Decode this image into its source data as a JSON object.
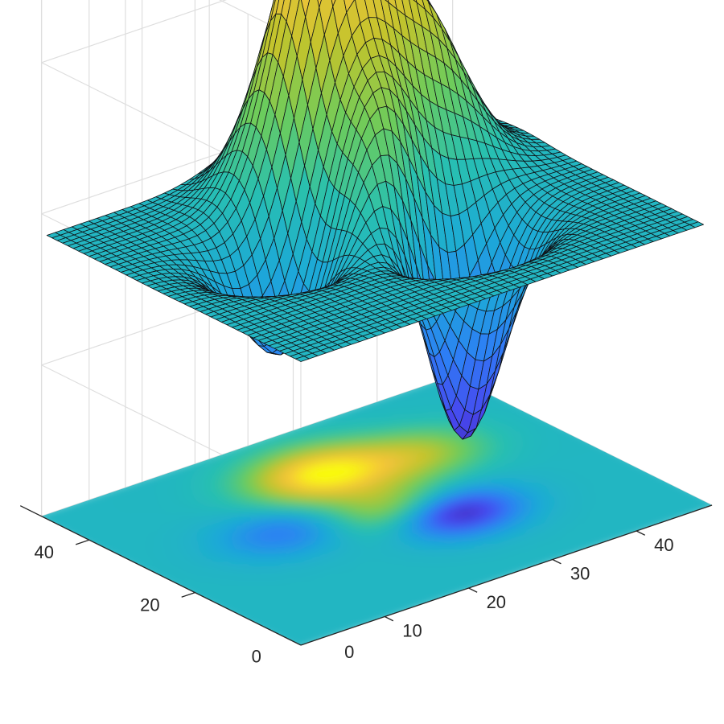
{
  "chart_data": {
    "type": "surface",
    "title": "",
    "xlabel": "",
    "ylabel": "",
    "zlabel": "",
    "xlim": [
      0,
      49
    ],
    "ylim": [
      0,
      49
    ],
    "grid": true,
    "colormap": "parula",
    "colormap_stops": [
      "#3e26a8",
      "#4748f0",
      "#2d7ff5",
      "#1ca9d8",
      "#28c0b0",
      "#6ccc5c",
      "#c2c42c",
      "#f5c33b",
      "#f9fb0e"
    ],
    "grid_size": 49,
    "xticks": [
      {
        "value": 10,
        "label": "10"
      },
      {
        "value": 20,
        "label": "20"
      },
      {
        "value": 30,
        "label": "30"
      },
      {
        "value": 40,
        "label": "40"
      }
    ],
    "yticks": [
      {
        "value": 20,
        "label": "20"
      },
      {
        "value": 40,
        "label": "40"
      }
    ],
    "origin_labels": {
      "x": "0",
      "y": "0"
    },
    "z_range": [
      -6.5,
      8.1
    ],
    "peaks": [
      {
        "name": "main-peak",
        "x": 26,
        "y": 37,
        "z": 8.1
      },
      {
        "name": "secondary-peak",
        "x": 26,
        "y": 24,
        "z": 3.8
      },
      {
        "name": "right-ridge",
        "x": 36,
        "y": 34,
        "z": 3.6
      },
      {
        "name": "left-trough",
        "x": 15,
        "y": 27,
        "z": -3.0
      },
      {
        "name": "deep-trough",
        "x": 30,
        "y": 18,
        "z": -6.5
      }
    ]
  }
}
